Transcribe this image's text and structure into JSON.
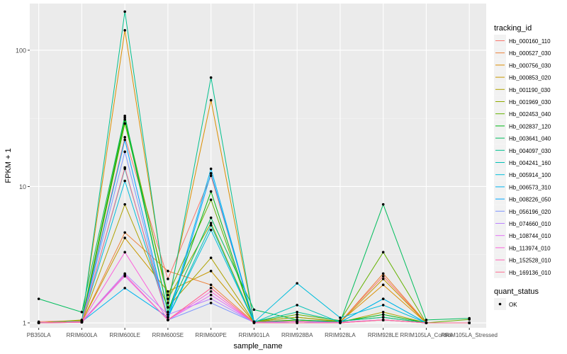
{
  "chart_data": {
    "type": "line",
    "xlabel": "sample_name",
    "ylabel": "FPKM + 1",
    "y_scale": "log10",
    "ylim": [
      0.92,
      220
    ],
    "y_ticks": [
      1,
      10,
      100
    ],
    "y_tick_labels": [
      "1",
      "10",
      "100"
    ],
    "categories": [
      "PB350LA",
      "RRIM600LA",
      "RRIM600LE",
      "RRIM600SE",
      "RRIM600PE",
      "RRIM901LA",
      "RRIM928BA",
      "RRIM928LA",
      "RRIM928LE",
      "RRIM105LA_Control",
      "RRIM105LA_Stressed"
    ],
    "legend": {
      "title": "tracking_id",
      "position": "right",
      "items": [
        "Hb_000160_110",
        "Hb_000527_030",
        "Hb_000756_030",
        "Hb_000853_020",
        "Hb_001190_030",
        "Hb_001969_030",
        "Hb_002453_040",
        "Hb_002837_120",
        "Hb_003641_040",
        "Hb_004097_030",
        "Hb_004241_160",
        "Hb_005914_100",
        "Hb_006573_310",
        "Hb_008226_050",
        "Hb_056196_020",
        "Hb_074660_010",
        "Hb_108744_010",
        "Hb_113974_010",
        "Hb_152528_010",
        "Hb_169136_010"
      ]
    },
    "shape_legend": {
      "title": "quant_status",
      "items": [
        "OK"
      ]
    },
    "series": [
      {
        "name": "Hb_000160_110",
        "color": "#F8766D",
        "values": [
          1.02,
          1.04,
          23,
          2.1,
          12,
          1.02,
          1.05,
          1.02,
          2.2,
          1.0,
          1.0
        ]
      },
      {
        "name": "Hb_000527_030",
        "color": "#EC8239",
        "values": [
          1.0,
          1.02,
          4.6,
          2.4,
          1.9,
          1.01,
          1.02,
          1.01,
          2.3,
          1.0,
          1.0
        ]
      },
      {
        "name": "Hb_000756_030",
        "color": "#DB8E00",
        "values": [
          1.0,
          1.03,
          140,
          1.4,
          43,
          1.02,
          1.1,
          1.02,
          1.9,
          1.0,
          1.0
        ]
      },
      {
        "name": "Hb_000853_020",
        "color": "#C79800",
        "values": [
          1.0,
          1.02,
          4.2,
          1.7,
          2.4,
          1.01,
          1.03,
          1.01,
          2.1,
          1.0,
          1.0
        ]
      },
      {
        "name": "Hb_001190_030",
        "color": "#AEA200",
        "values": [
          1.0,
          1.02,
          7.4,
          1.3,
          3.0,
          1.01,
          1.02,
          1.01,
          1.2,
          1.0,
          1.0
        ]
      },
      {
        "name": "Hb_001969_030",
        "color": "#8FAA00",
        "values": [
          1.0,
          1.05,
          32,
          1.5,
          5.4,
          1.02,
          1.1,
          1.03,
          1.1,
          1.0,
          1.0
        ]
      },
      {
        "name": "Hb_002453_040",
        "color": "#64B200",
        "values": [
          1.0,
          1.03,
          29,
          1.6,
          8.0,
          1.02,
          1.15,
          1.04,
          3.3,
          1.0,
          1.06
        ]
      },
      {
        "name": "Hb_002837_120",
        "color": "#00B813",
        "values": [
          1.0,
          1.02,
          31,
          1.2,
          9.2,
          1.01,
          1.05,
          1.02,
          1.15,
          1.0,
          1.0
        ]
      },
      {
        "name": "Hb_003641_040",
        "color": "#00BD5C",
        "values": [
          1.5,
          1.2,
          33,
          1.2,
          5.9,
          1.25,
          1.05,
          1.01,
          7.4,
          1.05,
          1.08
        ]
      },
      {
        "name": "Hb_004097_030",
        "color": "#00C08E",
        "values": [
          1.0,
          1.02,
          192,
          1.3,
          63,
          1.02,
          1.2,
          1.03,
          1.1,
          1.0,
          1.0
        ]
      },
      {
        "name": "Hb_004241_160",
        "color": "#00C1B7",
        "values": [
          1.0,
          1.02,
          13.5,
          1.1,
          5.2,
          1.01,
          1.35,
          1.01,
          1.5,
          1.0,
          1.0
        ]
      },
      {
        "name": "Hb_005914_100",
        "color": "#00BDDC",
        "values": [
          1.0,
          1.02,
          11,
          1.1,
          4.8,
          1.01,
          1.95,
          1.09,
          1.35,
          1.0,
          1.0
        ]
      },
      {
        "name": "Hb_006573_310",
        "color": "#00B4F0",
        "values": [
          1.0,
          1.02,
          1.8,
          1.1,
          13.5,
          1.01,
          1.02,
          1.01,
          1.5,
          1.0,
          1.0
        ]
      },
      {
        "name": "Hb_008226_050",
        "color": "#00A5FF",
        "values": [
          1.0,
          1.02,
          22,
          1.05,
          12.5,
          1.01,
          1.02,
          1.01,
          1.05,
          1.0,
          1.0
        ]
      },
      {
        "name": "Hb_056196_020",
        "color": "#7F96FF",
        "values": [
          1.0,
          1.02,
          18,
          1.05,
          1.4,
          1.01,
          1.02,
          1.01,
          1.05,
          1.0,
          1.0
        ]
      },
      {
        "name": "Hb_074660_010",
        "color": "#BB83FF",
        "values": [
          1.0,
          1.02,
          2.3,
          1.15,
          1.5,
          1.01,
          1.02,
          1.01,
          1.05,
          1.0,
          1.0
        ]
      },
      {
        "name": "Hb_108744_010",
        "color": "#E36FF6",
        "values": [
          1.0,
          1.01,
          2.2,
          1.05,
          1.6,
          1.01,
          1.02,
          1.01,
          1.05,
          1.0,
          1.0
        ]
      },
      {
        "name": "Hb_113974_010",
        "color": "#FA62DB",
        "values": [
          1.0,
          1.01,
          3.3,
          1.05,
          1.7,
          1.0,
          1.0,
          1.0,
          1.05,
          1.0,
          1.0
        ]
      },
      {
        "name": "Hb_152528_010",
        "color": "#FF63B5",
        "values": [
          1.0,
          1.01,
          2.25,
          1.05,
          1.8,
          1.0,
          1.0,
          1.0,
          1.05,
          1.0,
          1.0
        ]
      },
      {
        "name": "Hb_169136_010",
        "color": "#FF6C91",
        "values": [
          1.0,
          1.01,
          13.8,
          1.05,
          1.8,
          1.0,
          1.0,
          1.0,
          1.05,
          1.0,
          1.0
        ]
      }
    ]
  }
}
